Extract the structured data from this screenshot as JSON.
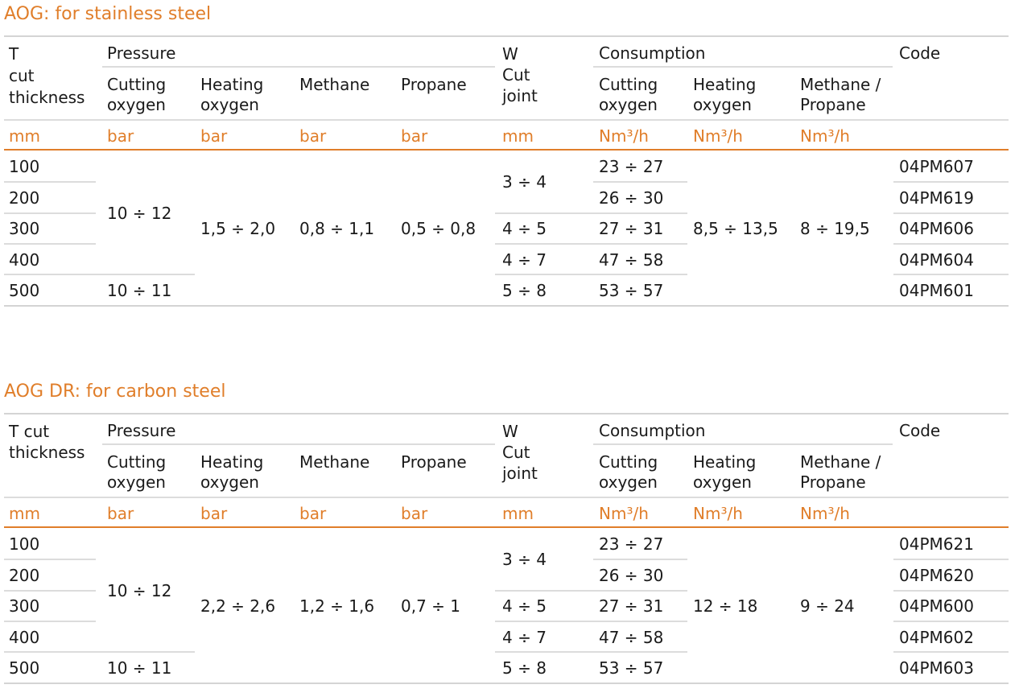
{
  "tables": [
    {
      "title": "AOG: for stainless steel",
      "headers": {
        "t_cut_thickness": "T\ncut\nthickness",
        "pressure": "Pressure",
        "w_cut_joint": "W\nCut\njoint",
        "consumption": "Consumption",
        "code": "Code",
        "cutting_oxygen": "Cutting\noxygen",
        "heating_oxygen": "Heating\noxygen",
        "methane": "Methane",
        "propane": "Propane",
        "cons_cutting_oxygen": "Cutting\noxygen",
        "cons_heating_oxygen": "Heating\noxygen",
        "methane_propane": "Methane /\nPropane"
      },
      "units": [
        "mm",
        "bar",
        "bar",
        "bar",
        "bar",
        "mm",
        "Nm³/h",
        "Nm³/h",
        "Nm³/h"
      ],
      "thickness": [
        "100",
        "200",
        "300",
        "400",
        "500"
      ],
      "cutting_oxygen_pressure": [
        "10 ÷ 12",
        "10 ÷ 11"
      ],
      "heating_oxygen_pressure": "1,5 ÷ 2,0",
      "methane_pressure": "0,8 ÷ 1,1",
      "propane_pressure": "0,5 ÷ 0,8",
      "cut_joint": [
        "3 ÷ 4",
        "4 ÷ 5",
        "4 ÷ 7",
        "5 ÷ 8"
      ],
      "cutting_oxygen_consumption": [
        "23 ÷ 27",
        "26 ÷ 30",
        "27 ÷ 31",
        "47 ÷ 58",
        "53 ÷ 57"
      ],
      "heating_oxygen_consumption": "8,5 ÷ 13,5",
      "methane_propane_consumption": "8 ÷ 19,5",
      "codes": [
        "04PM607",
        "04PM619",
        "04PM606",
        "04PM604",
        "04PM601"
      ]
    },
    {
      "title": "AOG DR: for carbon steel",
      "headers": {
        "t_cut_thickness": "T cut\nthickness",
        "pressure": "Pressure",
        "w_cut_joint": "W\nCut\njoint",
        "consumption": "Consumption",
        "code": "Code",
        "cutting_oxygen": "Cutting\noxygen",
        "heating_oxygen": "Heating\noxygen",
        "methane": "Methane",
        "propane": "Propane",
        "cons_cutting_oxygen": "Cutting\noxygen",
        "cons_heating_oxygen": "Heating\noxygen",
        "methane_propane": "Methane /\nPropane"
      },
      "units": [
        "mm",
        "bar",
        "bar",
        "bar",
        "bar",
        "mm",
        "Nm³/h",
        "Nm³/h",
        "Nm³/h"
      ],
      "thickness": [
        "100",
        "200",
        "300",
        "400",
        "500"
      ],
      "cutting_oxygen_pressure": [
        "10 ÷ 12",
        "10 ÷ 11"
      ],
      "heating_oxygen_pressure": "2,2 ÷ 2,6",
      "methane_pressure": "1,2 ÷ 1,6",
      "propane_pressure": "0,7 ÷ 1",
      "cut_joint": [
        "3 ÷ 4",
        "4 ÷ 5",
        "4 ÷ 7",
        "5 ÷ 8"
      ],
      "cutting_oxygen_consumption": [
        "23 ÷ 27",
        "26 ÷ 30",
        "27 ÷ 31",
        "47 ÷ 58",
        "53 ÷ 57"
      ],
      "heating_oxygen_consumption": "12 ÷ 18",
      "methane_propane_consumption": "9 ÷ 24",
      "codes": [
        "04PM621",
        "04PM620",
        "04PM600",
        "04PM602",
        "04PM603"
      ]
    }
  ]
}
